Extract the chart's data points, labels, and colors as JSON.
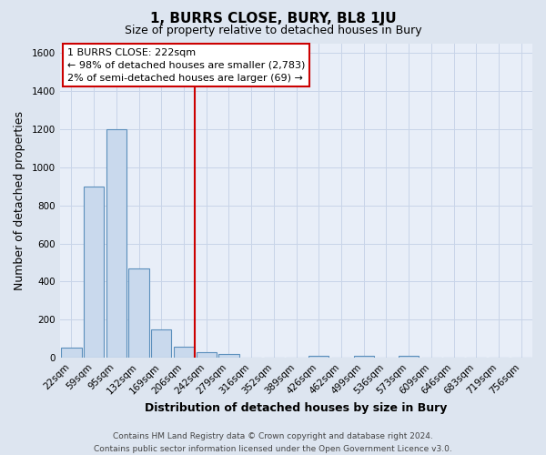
{
  "title": "1, BURRS CLOSE, BURY, BL8 1JU",
  "subtitle": "Size of property relative to detached houses in Bury",
  "xlabel": "Distribution of detached houses by size in Bury",
  "ylabel": "Number of detached properties",
  "bin_labels": [
    "22sqm",
    "59sqm",
    "95sqm",
    "132sqm",
    "169sqm",
    "206sqm",
    "242sqm",
    "279sqm",
    "316sqm",
    "352sqm",
    "389sqm",
    "426sqm",
    "462sqm",
    "499sqm",
    "536sqm",
    "573sqm",
    "609sqm",
    "646sqm",
    "683sqm",
    "719sqm",
    "756sqm"
  ],
  "bar_values": [
    55,
    900,
    1200,
    470,
    150,
    60,
    30,
    20,
    0,
    0,
    0,
    10,
    0,
    10,
    0,
    10,
    0,
    0,
    0,
    0,
    0
  ],
  "bar_color": "#c9d9ed",
  "bar_edge_color": "#5b8fbc",
  "vline_color": "#cc0000",
  "ylim": [
    0,
    1650
  ],
  "yticks": [
    0,
    200,
    400,
    600,
    800,
    1000,
    1200,
    1400,
    1600
  ],
  "annotation_title": "1 BURRS CLOSE: 222sqm",
  "annotation_line1": "← 98% of detached houses are smaller (2,783)",
  "annotation_line2": "2% of semi-detached houses are larger (69) →",
  "annotation_box_facecolor": "#ffffff",
  "annotation_box_edgecolor": "#cc0000",
  "footer_line1": "Contains HM Land Registry data © Crown copyright and database right 2024.",
  "footer_line2": "Contains public sector information licensed under the Open Government Licence v3.0.",
  "fig_bg_color": "#dde5f0",
  "plot_bg_color": "#e8eef8",
  "grid_color": "#c8d4e8",
  "title_fontsize": 11,
  "subtitle_fontsize": 9,
  "xlabel_fontsize": 9,
  "ylabel_fontsize": 9,
  "tick_fontsize": 7.5,
  "annotation_fontsize": 8,
  "footer_fontsize": 6.5
}
